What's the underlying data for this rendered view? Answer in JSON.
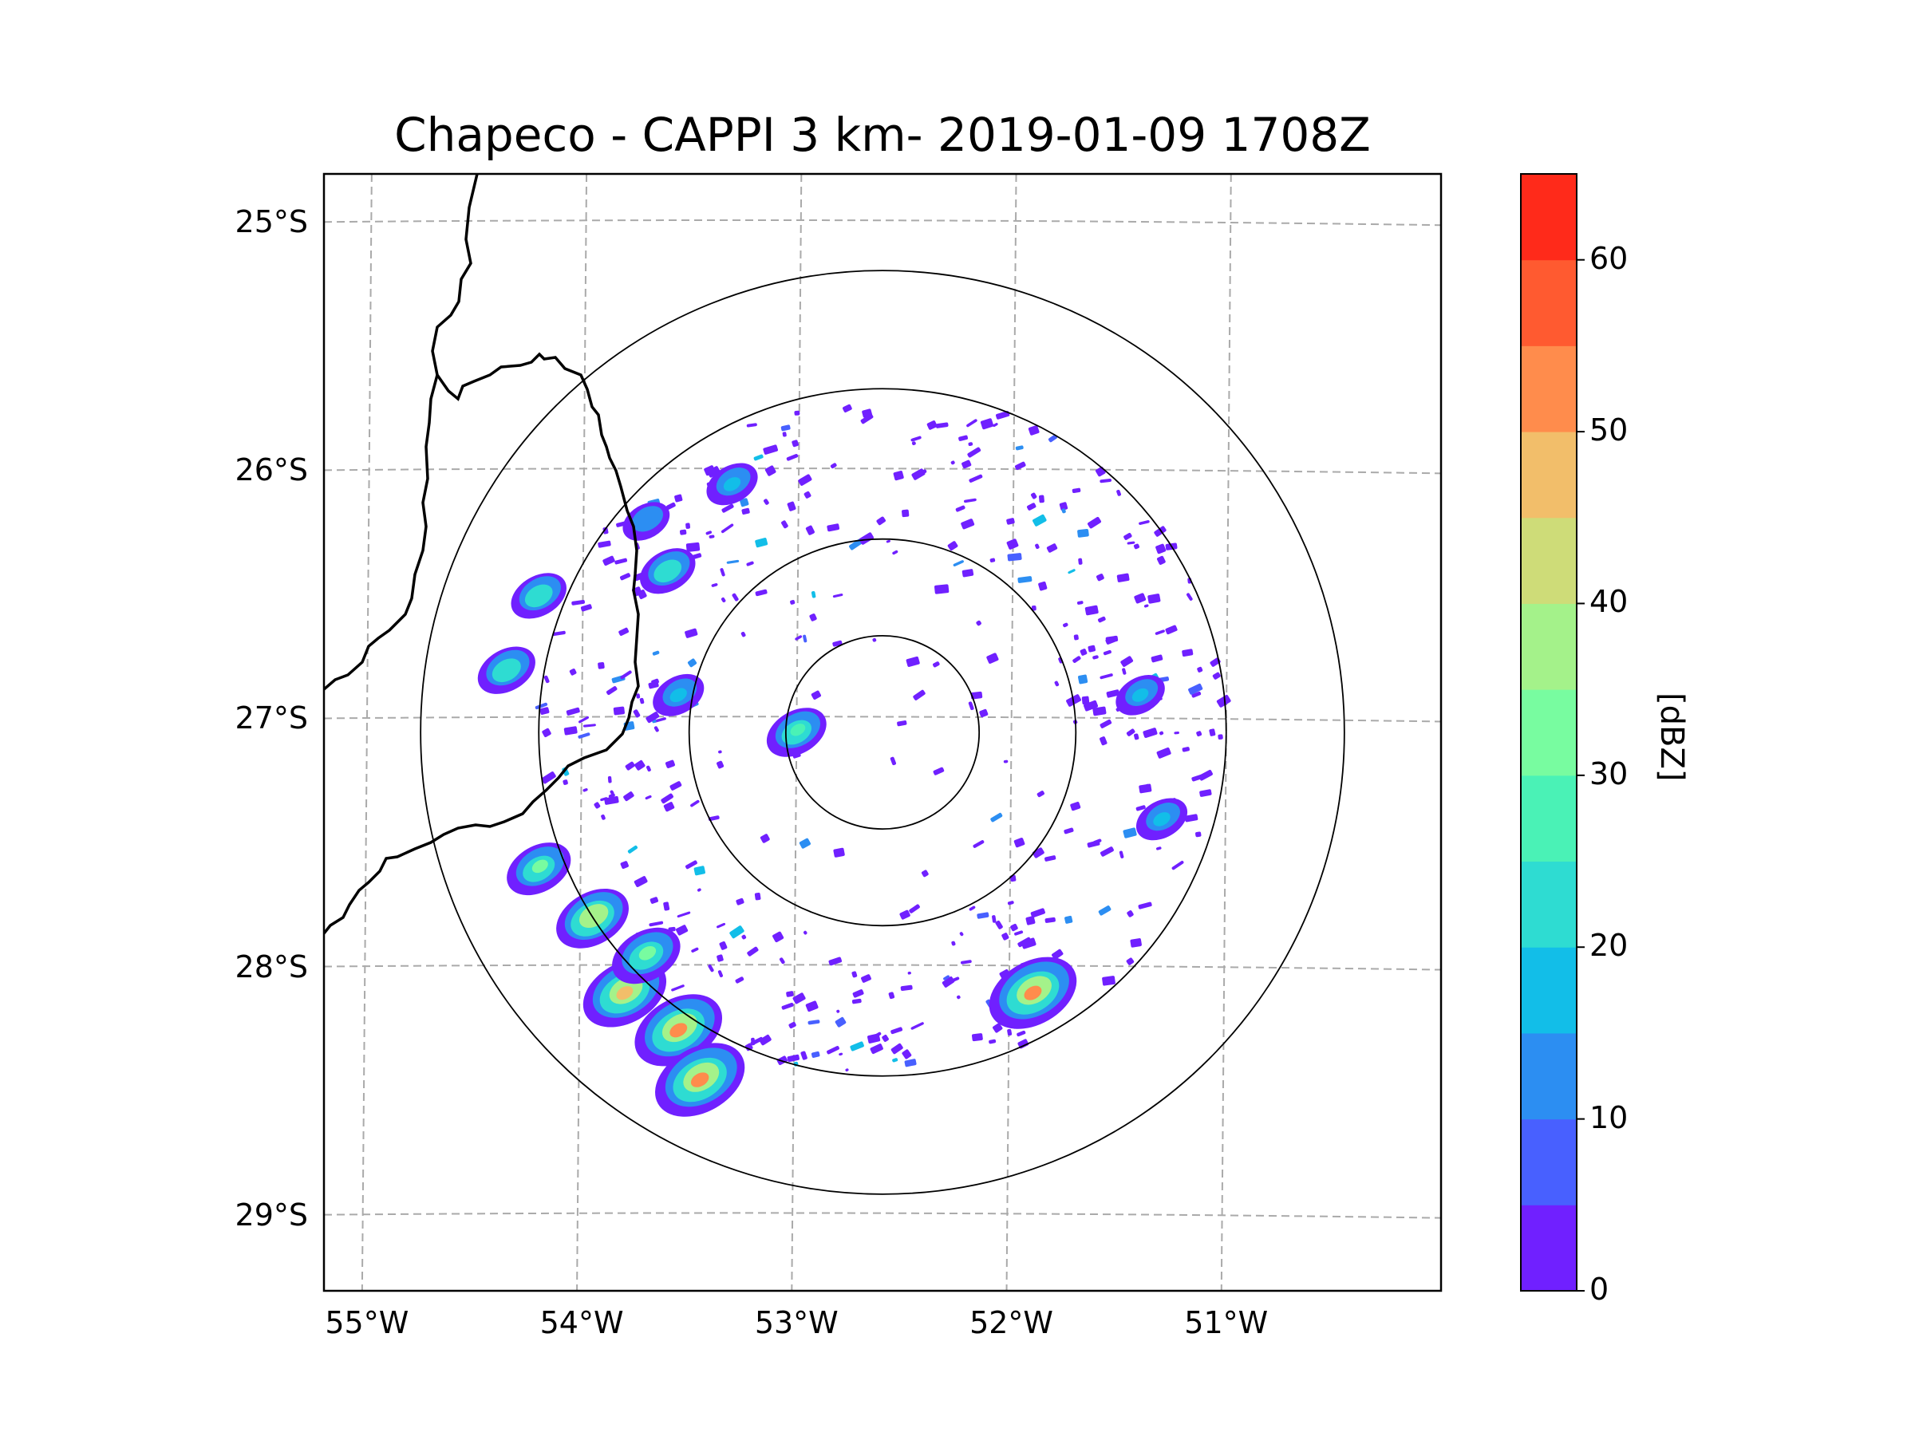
{
  "chart_data": {
    "type": "heatmap",
    "title": "Chapeco - CAPPI 3 km- 2019-01-09 1708Z",
    "map_extent": {
      "lon_min": -55.2,
      "lon_max": -50.0,
      "lat_min": -29.3,
      "lat_max": -24.8
    },
    "radar_center": {
      "lon": -52.6,
      "lat": -27.05
    },
    "range_ring_degrees": [
      0.45,
      0.9,
      1.6,
      2.15
    ],
    "lat_ticks": [
      {
        "value": -25,
        "label": "25°S"
      },
      {
        "value": -26,
        "label": "26°S"
      },
      {
        "value": -27,
        "label": "27°S"
      },
      {
        "value": -28,
        "label": "28°S"
      },
      {
        "value": -29,
        "label": "29°S"
      }
    ],
    "lon_ticks": [
      {
        "value": -55,
        "label": "55°W"
      },
      {
        "value": -54,
        "label": "54°W"
      },
      {
        "value": -53,
        "label": "53°W"
      },
      {
        "value": -52,
        "label": "52°W"
      },
      {
        "value": -51,
        "label": "51°W"
      }
    ],
    "gridlines": true,
    "colorbar": {
      "label": "[dBZ]",
      "vmin": 0,
      "vmax": 65,
      "levels": [
        0,
        5,
        10,
        15,
        20,
        25,
        30,
        35,
        40,
        45,
        50,
        55,
        60,
        65
      ],
      "colors": [
        "#7020ff",
        "#4860ff",
        "#2c8ef2",
        "#12bee8",
        "#2edcd2",
        "#4af2b6",
        "#78fca0",
        "#a4f28a",
        "#cedc78",
        "#f2be6a",
        "#ff8c4c",
        "#ff5a30",
        "#ff2a1a"
      ],
      "tick_values": [
        0,
        10,
        20,
        30,
        40,
        50,
        60
      ],
      "tick_labels": [
        "0",
        "10",
        "20",
        "30",
        "40",
        "50",
        "60"
      ]
    },
    "echo_cells": [
      {
        "lon": -53.8,
        "lat": -28.1,
        "dbz": 48
      },
      {
        "lon": -53.55,
        "lat": -28.25,
        "dbz": 52
      },
      {
        "lon": -53.45,
        "lat": -28.45,
        "dbz": 54
      },
      {
        "lon": -53.95,
        "lat": -27.8,
        "dbz": 38
      },
      {
        "lon": -53.7,
        "lat": -27.95,
        "dbz": 34
      },
      {
        "lon": -54.2,
        "lat": -27.6,
        "dbz": 30
      },
      {
        "lon": -51.9,
        "lat": -28.1,
        "dbz": 52
      },
      {
        "lon": -53.6,
        "lat": -26.4,
        "dbz": 22
      },
      {
        "lon": -53.55,
        "lat": -26.9,
        "dbz": 18
      },
      {
        "lon": -53.0,
        "lat": -27.05,
        "dbz": 26
      },
      {
        "lon": -54.2,
        "lat": -26.5,
        "dbz": 22
      },
      {
        "lon": -54.35,
        "lat": -26.8,
        "dbz": 24
      },
      {
        "lon": -53.7,
        "lat": -26.2,
        "dbz": 14
      },
      {
        "lon": -53.3,
        "lat": -26.05,
        "dbz": 18
      },
      {
        "lon": -51.4,
        "lat": -26.9,
        "dbz": 16
      },
      {
        "lon": -51.3,
        "lat": -27.4,
        "dbz": 18
      }
    ]
  }
}
